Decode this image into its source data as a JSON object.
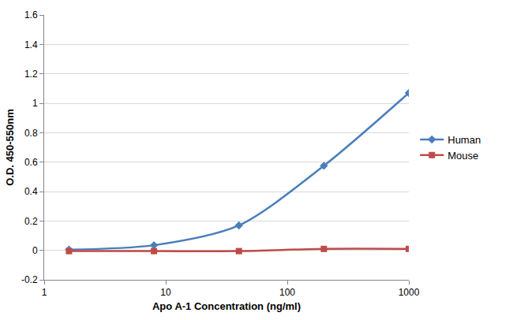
{
  "chart_data": {
    "type": "line",
    "x_label": "Apo A-1 Concentration (ng/ml)",
    "y_label": "O.D. 450-550nm",
    "x": [
      1.6,
      8,
      40,
      200,
      1000
    ],
    "series": [
      {
        "name": "Human",
        "color": "#4a7ebb",
        "marker": "diamond",
        "line_style": "solid",
        "values": [
          0.005,
          0.035,
          0.17,
          0.575,
          1.07
        ]
      },
      {
        "name": "Mouse",
        "color": "#be4b48",
        "marker": "square",
        "line_style": "solid",
        "values": [
          -0.005,
          -0.005,
          -0.005,
          0.01,
          0.01
        ]
      }
    ],
    "log": "x",
    "xlim": [
      1,
      1000
    ],
    "xticks": [
      1,
      10,
      100,
      1000
    ],
    "ylim": [
      -0.2,
      1.6
    ],
    "yticks": [
      -0.2,
      0,
      0.2,
      0.4,
      0.6,
      0.8,
      1,
      1.2,
      1.4,
      1.6
    ],
    "grid": true,
    "legend": "right"
  }
}
